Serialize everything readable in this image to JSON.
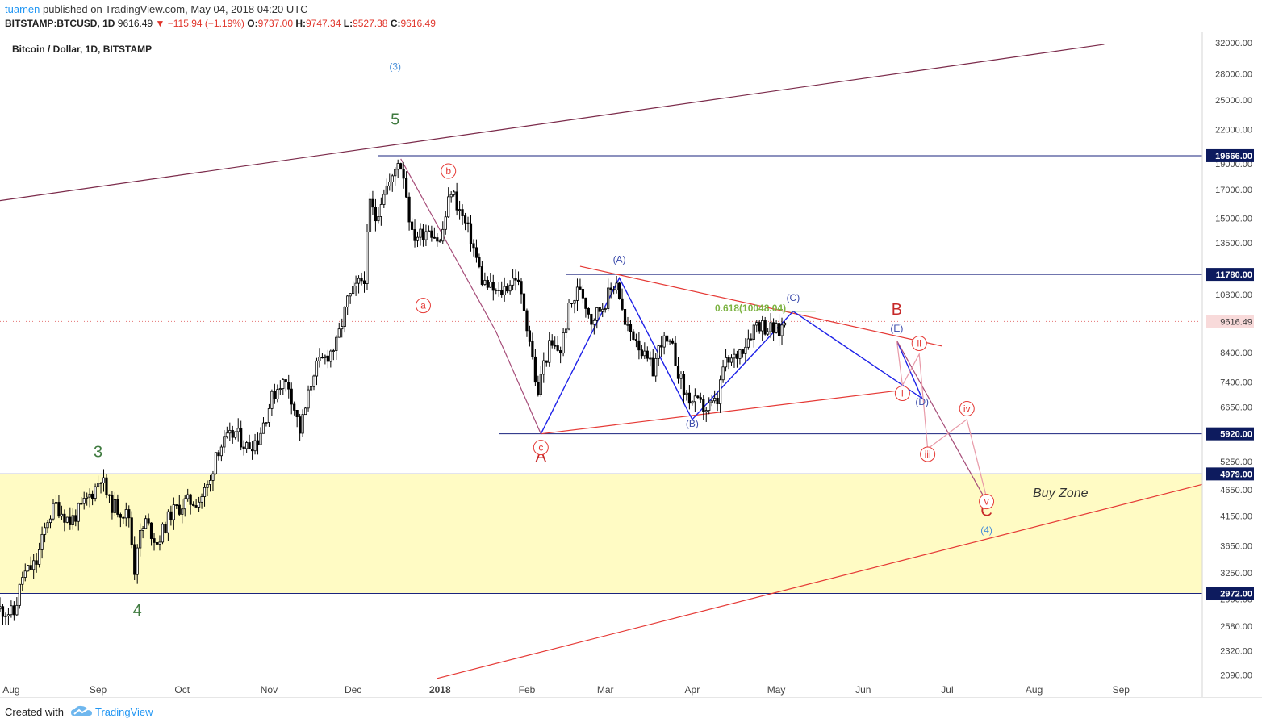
{
  "header": {
    "author": "tuamen",
    "published": "published on TradingView.com, May 04, 2018 04:20 UTC",
    "symbol": "BITSTAMP:BTCUSD, 1D",
    "last": "9616.49",
    "change": "▼ −115.94 (−1.19%)",
    "o_label": "O:",
    "o_value": "9737.00",
    "h_label": "H:",
    "h_value": "9747.34",
    "l_label": "L:",
    "l_value": "9527.38",
    "c_label": "C:",
    "c_value": "9616.49"
  },
  "footer": {
    "created": "Created with",
    "brand": "TradingView"
  },
  "colors": {
    "candle": "#000000",
    "buy_zone": "#fffbc4",
    "level_line": "#1a237e",
    "wave_blue": "#1e22e8",
    "wave_red": "#e53935",
    "channel_top": "#7b2a4a",
    "pink": "#e89aa8",
    "price_tag_bg": "#0d1b5e",
    "last_price_bg": "#f8dada"
  },
  "chart_data": {
    "type": "candlestick",
    "title": "Bitcoin / Dollar, 1D, BITSTAMP",
    "y_scale": "log",
    "ylim": [
      1900,
      33500
    ],
    "xlim": [
      "2017-07-28",
      "2018-09-30"
    ],
    "y_ticks": [
      2090,
      2320,
      2580,
      2900,
      3250,
      3650,
      4150,
      4650,
      5250,
      6650,
      7400,
      8400,
      9616.49,
      10800,
      13500,
      15000,
      17000,
      19000,
      22000,
      25000,
      28000,
      32000
    ],
    "y_tick_labels": [
      "2090.00",
      "2320.00",
      "2580.00",
      "2900.00",
      "3250.00",
      "3650.00",
      "4150.00",
      "4650.00",
      "5250.00",
      "6650.00",
      "7400.00",
      "8400.00",
      "9616.49",
      "10800.00",
      "13500.00",
      "15000.00",
      "17000.00",
      "19000.00",
      "22000.00",
      "25000.00",
      "28000.00",
      "32000.00"
    ],
    "x_ticks": [
      {
        "date": "2017-08-01",
        "label": "Aug",
        "bold": false
      },
      {
        "date": "2017-09-01",
        "label": "Sep",
        "bold": false
      },
      {
        "date": "2017-10-01",
        "label": "Oct",
        "bold": false
      },
      {
        "date": "2017-11-01",
        "label": "Nov",
        "bold": false
      },
      {
        "date": "2017-12-01",
        "label": "Dec",
        "bold": false
      },
      {
        "date": "2018-01-01",
        "label": "2018",
        "bold": true
      },
      {
        "date": "2018-02-01",
        "label": "Feb",
        "bold": false
      },
      {
        "date": "2018-03-01",
        "label": "Mar",
        "bold": false
      },
      {
        "date": "2018-04-01",
        "label": "Apr",
        "bold": false
      },
      {
        "date": "2018-05-01",
        "label": "May",
        "bold": false
      },
      {
        "date": "2018-06-01",
        "label": "Jun",
        "bold": false
      },
      {
        "date": "2018-07-01",
        "label": "Jul",
        "bold": false
      },
      {
        "date": "2018-08-01",
        "label": "Aug",
        "bold": false
      },
      {
        "date": "2018-09-01",
        "label": "Sep",
        "bold": false
      }
    ],
    "price_path": [
      [
        "2017-07-28",
        2780
      ],
      [
        "2017-08-02",
        2720
      ],
      [
        "2017-08-05",
        3200
      ],
      [
        "2017-08-10",
        3400
      ],
      [
        "2017-08-14",
        4100
      ],
      [
        "2017-08-17",
        4350
      ],
      [
        "2017-08-22",
        4050
      ],
      [
        "2017-08-26",
        4300
      ],
      [
        "2017-08-31",
        4700
      ],
      [
        "2017-09-02",
        4950
      ],
      [
        "2017-09-05",
        4400
      ],
      [
        "2017-09-09",
        4250
      ],
      [
        "2017-09-12",
        4150
      ],
      [
        "2017-09-14",
        3300
      ],
      [
        "2017-09-15",
        3700
      ],
      [
        "2017-09-18",
        4050
      ],
      [
        "2017-09-22",
        3700
      ],
      [
        "2017-09-27",
        4200
      ],
      [
        "2017-10-02",
        4400
      ],
      [
        "2017-10-07",
        4450
      ],
      [
        "2017-10-11",
        4800
      ],
      [
        "2017-10-13",
        5500
      ],
      [
        "2017-10-16",
        5700
      ],
      [
        "2017-10-20",
        5950
      ],
      [
        "2017-10-24",
        5600
      ],
      [
        "2017-10-28",
        5800
      ],
      [
        "2017-11-02",
        6900
      ],
      [
        "2017-11-05",
        7400
      ],
      [
        "2017-11-08",
        7300
      ],
      [
        "2017-11-11",
        6300
      ],
      [
        "2017-11-12",
        6000
      ],
      [
        "2017-11-14",
        6600
      ],
      [
        "2017-11-17",
        7800
      ],
      [
        "2017-11-20",
        8100
      ],
      [
        "2017-11-25",
        8700
      ],
      [
        "2017-11-29",
        10500
      ],
      [
        "2017-12-01",
        10900
      ],
      [
        "2017-12-05",
        11700
      ],
      [
        "2017-12-07",
        16000
      ],
      [
        "2017-12-09",
        15000
      ],
      [
        "2017-12-12",
        17000
      ],
      [
        "2017-12-15",
        17700
      ],
      [
        "2017-12-17",
        19400
      ],
      [
        "2017-12-19",
        18200
      ],
      [
        "2017-12-22",
        13900
      ],
      [
        "2017-12-25",
        14000
      ],
      [
        "2017-12-28",
        14500
      ],
      [
        "2018-01-01",
        13500
      ],
      [
        "2018-01-05",
        17000
      ],
      [
        "2018-01-08",
        15500
      ],
      [
        "2018-01-12",
        13800
      ],
      [
        "2018-01-16",
        11500
      ],
      [
        "2018-01-18",
        11200
      ],
      [
        "2018-01-22",
        10800
      ],
      [
        "2018-01-28",
        11700
      ],
      [
        "2018-01-31",
        10200
      ],
      [
        "2018-02-02",
        8900
      ],
      [
        "2018-02-05",
        6900
      ],
      [
        "2018-02-06",
        7700
      ],
      [
        "2018-02-09",
        8600
      ],
      [
        "2018-02-13",
        8500
      ],
      [
        "2018-02-16",
        10100
      ],
      [
        "2018-02-20",
        11200
      ],
      [
        "2018-02-24",
        9700
      ],
      [
        "2018-02-28",
        10300
      ],
      [
        "2018-03-05",
        11500
      ],
      [
        "2018-03-08",
        9400
      ],
      [
        "2018-03-12",
        9000
      ],
      [
        "2018-03-15",
        8200
      ],
      [
        "2018-03-18",
        7800
      ],
      [
        "2018-03-21",
        8900
      ],
      [
        "2018-03-25",
        8500
      ],
      [
        "2018-03-29",
        7100
      ],
      [
        "2018-04-01",
        6800
      ],
      [
        "2018-04-06",
        6600
      ],
      [
        "2018-04-10",
        6800
      ],
      [
        "2018-04-12",
        7900
      ],
      [
        "2018-04-16",
        8200
      ],
      [
        "2018-04-20",
        8800
      ],
      [
        "2018-04-24",
        9600
      ],
      [
        "2018-04-28",
        9350
      ],
      [
        "2018-05-02",
        9200
      ],
      [
        "2018-05-04",
        9616.49
      ]
    ],
    "levels": [
      {
        "value": 19666,
        "label": "19666.00",
        "from": "2017-12-10"
      },
      {
        "value": 11780,
        "label": "11780.00",
        "from": "2018-02-15"
      },
      {
        "value": 5920,
        "label": "5920.00",
        "from": "2018-01-22"
      },
      {
        "value": 4979,
        "label": "4979.00",
        "from": "2017-07-28"
      },
      {
        "value": 2972,
        "label": "2972.00",
        "from": "2017-07-28"
      }
    ],
    "last_price": {
      "value": 9616.49,
      "label": "9616.49"
    },
    "buy_zone": {
      "low": 2972,
      "high": 4979,
      "label": "Buy Zone"
    },
    "fib": {
      "label": "0.618(10048.04)",
      "value": 10048.04
    },
    "annotations": [
      {
        "text": "(3)",
        "date": "2017-12-16",
        "price": 28500,
        "color": "#4a90d9"
      },
      {
        "text": "5",
        "date": "2017-12-16",
        "price": 22500,
        "color": "#3f7a3f"
      },
      {
        "text": "3",
        "date": "2017-09-01",
        "price": 5350,
        "color": "#3f7a3f"
      },
      {
        "text": "4",
        "date": "2017-09-15",
        "price": 2700,
        "color": "#3f7a3f"
      },
      {
        "text": "A",
        "date": "2018-02-06",
        "price": 5250,
        "color": "#c62828"
      },
      {
        "text": "B",
        "date": "2018-06-13",
        "price": 9900,
        "color": "#c62828"
      },
      {
        "text": "C",
        "date": "2018-07-15",
        "price": 4150,
        "color": "#c62828"
      },
      {
        "text": "(4)",
        "date": "2018-07-15",
        "price": 3850,
        "color": "#4a90d9"
      },
      {
        "text": "(A)",
        "date": "2018-03-06",
        "price": 12400,
        "color": "#3949ab"
      },
      {
        "text": "(B)",
        "date": "2018-04-01",
        "price": 6100,
        "color": "#3949ab"
      },
      {
        "text": "(C)",
        "date": "2018-05-07",
        "price": 10500,
        "color": "#3949ab"
      },
      {
        "text": "(D)",
        "date": "2018-06-22",
        "price": 6700,
        "color": "#3949ab"
      },
      {
        "text": "(E)",
        "date": "2018-06-13",
        "price": 9200,
        "color": "#3949ab"
      }
    ],
    "circle_labels": [
      {
        "text": "a",
        "date": "2017-12-26",
        "price": 10300
      },
      {
        "text": "b",
        "date": "2018-01-04",
        "price": 18400
      },
      {
        "text": "c",
        "date": "2018-02-06",
        "price": 5580
      },
      {
        "text": "i",
        "date": "2018-06-15",
        "price": 7050
      },
      {
        "text": "ii",
        "date": "2018-06-21",
        "price": 8750
      },
      {
        "text": "iii",
        "date": "2018-06-24",
        "price": 5420
      },
      {
        "text": "iv",
        "date": "2018-07-08",
        "price": 6600
      },
      {
        "text": "v",
        "date": "2018-07-15",
        "price": 4420
      }
    ]
  }
}
